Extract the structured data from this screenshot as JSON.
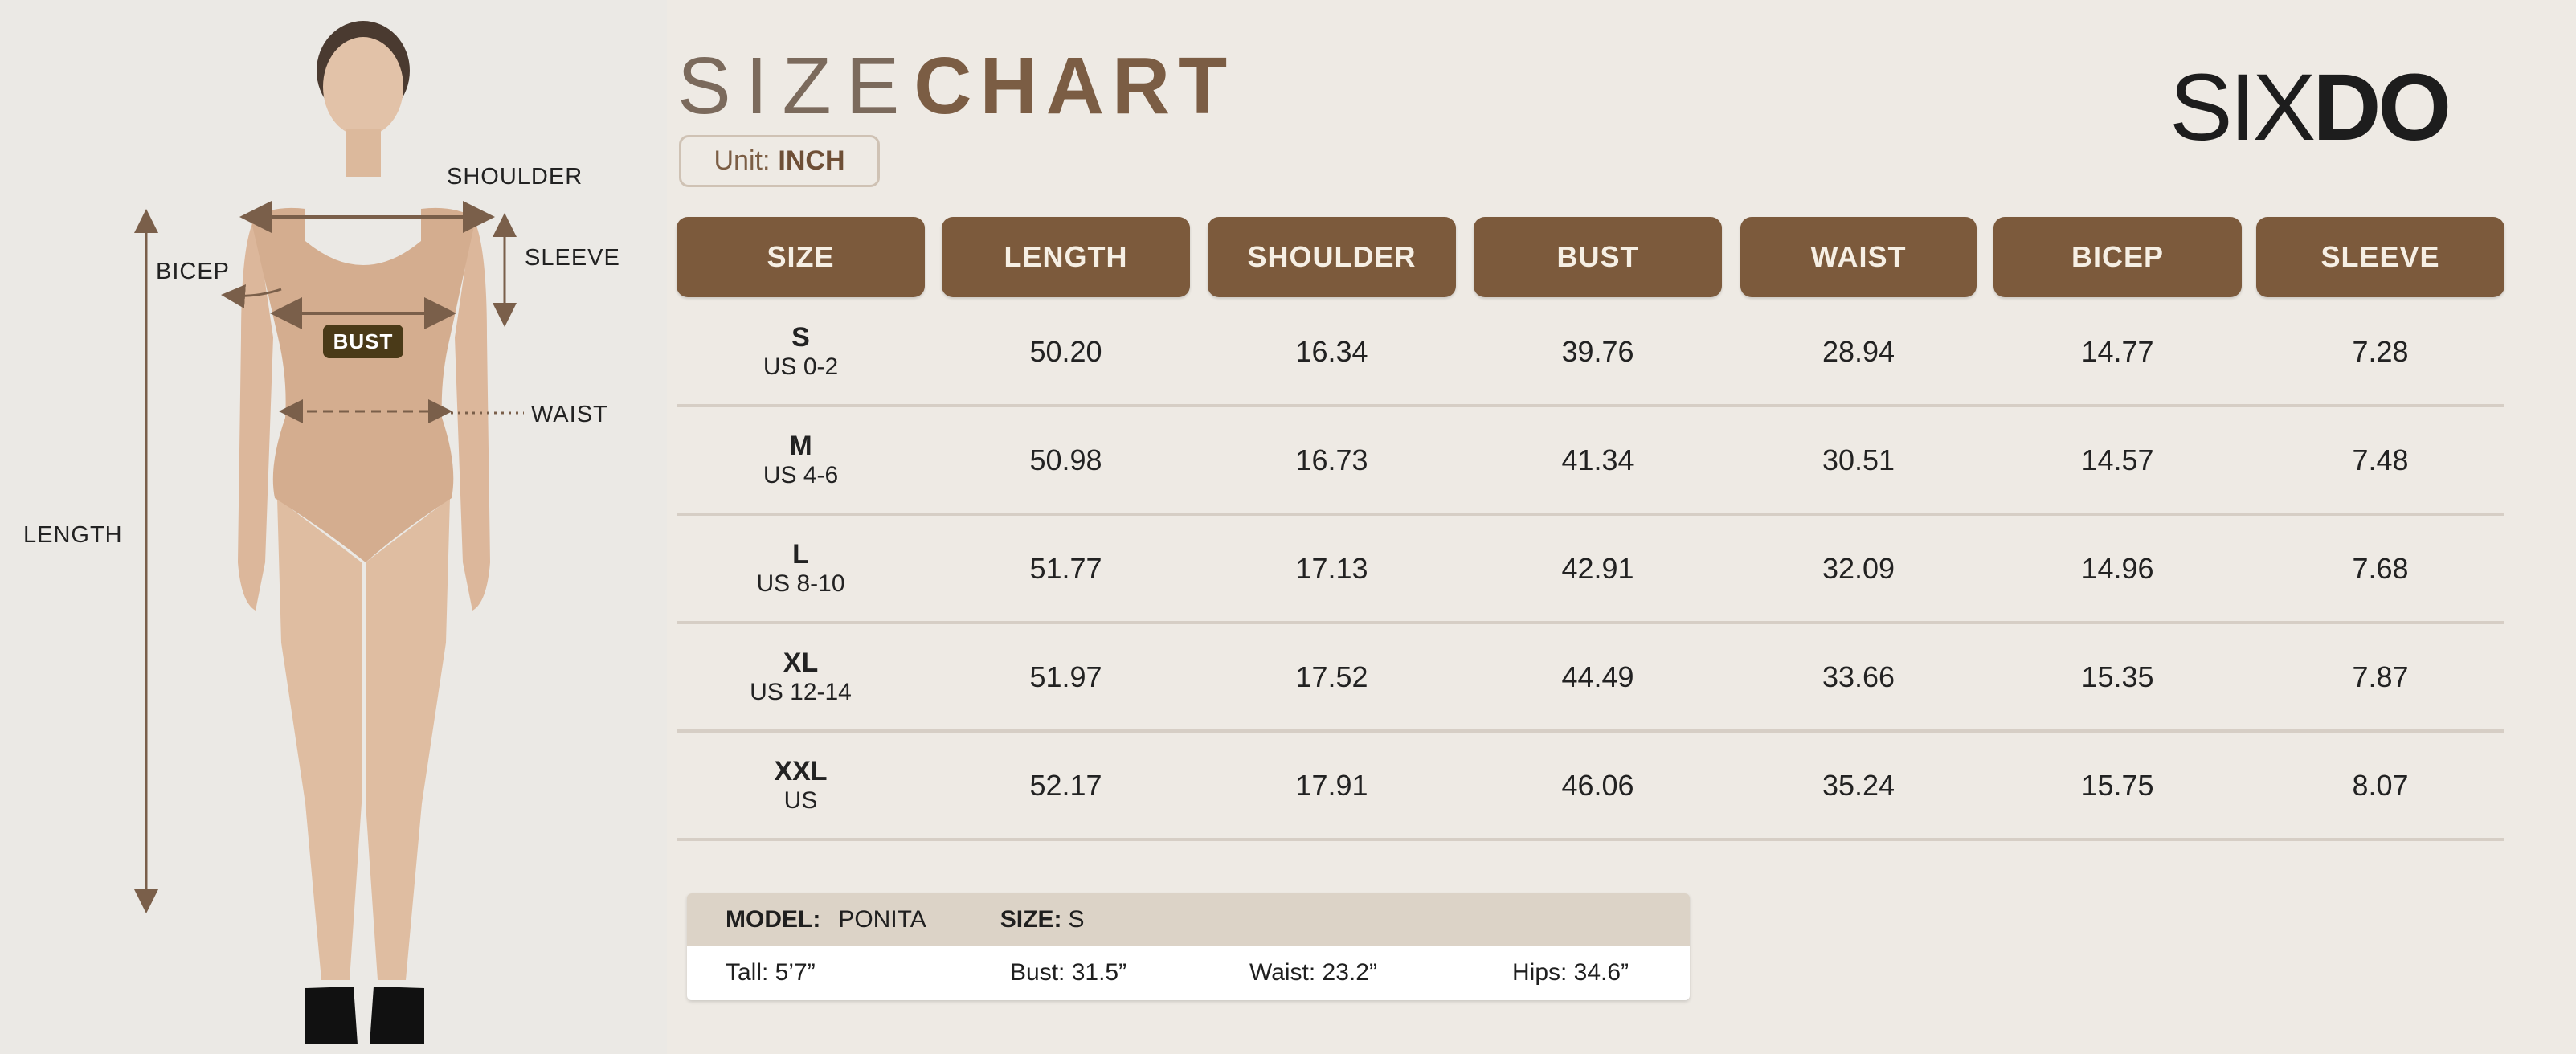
{
  "title": {
    "light": "SIZE",
    "bold": "CHART"
  },
  "unit": {
    "label": "Unit:",
    "value": "INCH"
  },
  "brand": {
    "part1": "SIX",
    "part2": "DO"
  },
  "figure": {
    "labels": {
      "shoulder": "SHOULDER",
      "bicep": "BICEP",
      "sleeve": "SLEEVE",
      "bust": "BUST",
      "waist": "WAIST",
      "length": "LENGTH"
    }
  },
  "colors": {
    "header_bg": "#7c5a3c",
    "header_text": "#f6efe4",
    "background": "#eeeae4",
    "accent": "#7b5d44"
  },
  "table": {
    "headers": [
      "SIZE",
      "LENGTH",
      "SHOULDER",
      "BUST",
      "WAIST",
      "BICEP",
      "SLEEVE"
    ],
    "rows": [
      {
        "size": "S",
        "us": "US 0-2",
        "values": [
          "50.20",
          "16.34",
          "39.76",
          "28.94",
          "14.77",
          "7.28"
        ]
      },
      {
        "size": "M",
        "us": "US 4-6",
        "values": [
          "50.98",
          "16.73",
          "41.34",
          "30.51",
          "14.57",
          "7.48"
        ]
      },
      {
        "size": "L",
        "us": "US 8-10",
        "values": [
          "51.77",
          "17.13",
          "42.91",
          "32.09",
          "14.96",
          "7.68"
        ]
      },
      {
        "size": "XL",
        "us": "US 12-14",
        "values": [
          "51.97",
          "17.52",
          "44.49",
          "33.66",
          "15.35",
          "7.87"
        ]
      },
      {
        "size": "XXL",
        "us": "US",
        "values": [
          "52.17",
          "17.91",
          "46.06",
          "35.24",
          "15.75",
          "8.07"
        ]
      }
    ]
  },
  "model": {
    "model_label": "MODEL:",
    "model_name": "PONITA",
    "size_label": "SIZE:",
    "size_value": "S",
    "tall": "Tall:  5’7”",
    "bust": "Bust:  31.5”",
    "waist": "Waist:  23.2”",
    "hips": "Hips:  34.6”"
  }
}
